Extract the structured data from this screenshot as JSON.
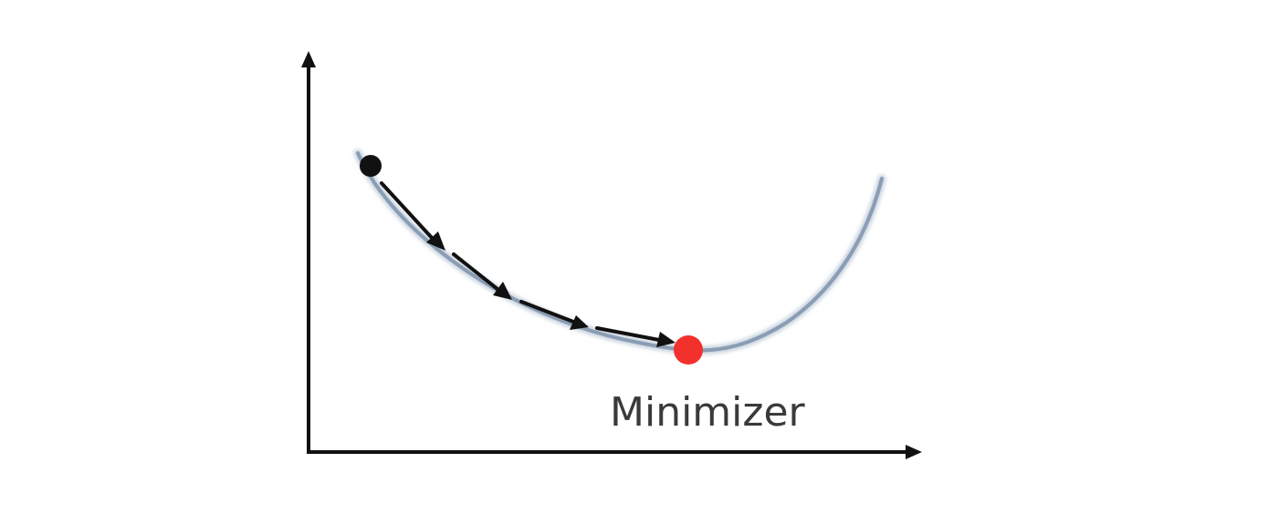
{
  "diagram": {
    "minimizer_label": "Minimizer",
    "step_count": 4
  },
  "colors": {
    "axes": "#111111",
    "curve": "#8a9db4",
    "curve_glow": "#c7d2de",
    "arrows": "#111111",
    "start_point": "#111111",
    "minimizer_point": "#f2302c",
    "label_text": "#3a3a3a"
  }
}
